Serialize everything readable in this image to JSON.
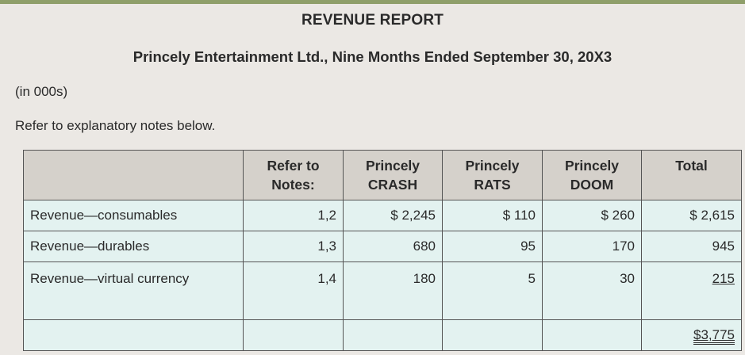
{
  "report": {
    "title": "REVENUE REPORT",
    "subtitle": "Princely Entertainment Ltd., Nine Months Ended September 30, 20X3",
    "units_note": "(in 000s)",
    "refer_note": "Refer to explanatory notes below."
  },
  "table": {
    "headers": {
      "label": "",
      "notes": "Refer to Notes:",
      "crash": "Princely CRASH",
      "rats": "Princely RATS",
      "doom": "Princely DOOM",
      "total": "Total"
    },
    "rows": [
      {
        "label": "Revenue—consumables",
        "notes": "1,2",
        "crash": "$ 2,245",
        "rats": "$ 110",
        "doom": "$ 260",
        "total": "$ 2,615"
      },
      {
        "label": "Revenue—durables",
        "notes": "1,3",
        "crash": "680",
        "rats": "95",
        "doom": "170",
        "total": "945"
      },
      {
        "label": "Revenue—virtual currency",
        "notes": "1,4",
        "crash": "180",
        "rats": "5",
        "doom": "30",
        "total": "215"
      }
    ],
    "grand_total": "$3,775"
  },
  "colors": {
    "page_background": "#ebe8e4",
    "top_bar": "#8f9f6a",
    "header_fill": "#d5d1cb",
    "body_fill": "#e3f2f0"
  }
}
